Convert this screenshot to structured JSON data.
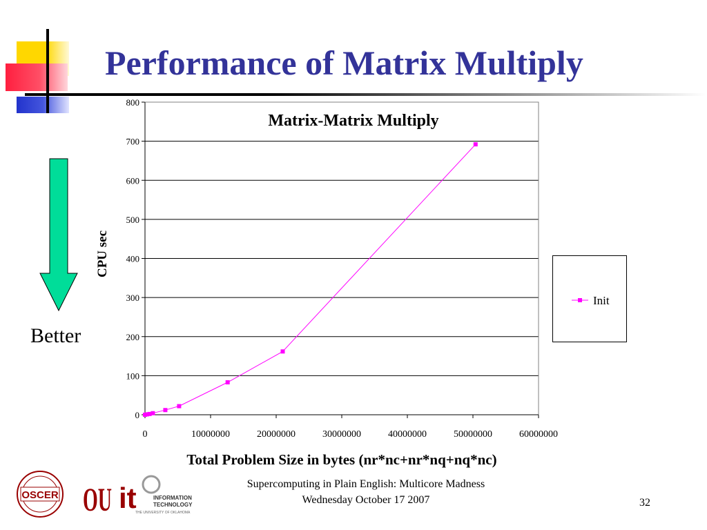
{
  "slide": {
    "title": "Performance of Matrix Multiply",
    "better_label": "Better",
    "footer_line1": "Supercomputing in Plain English: Multicore Madness",
    "footer_line2": "Wednesday October 17 2007",
    "slide_number": "32",
    "logos": {
      "oscer": "OSCER",
      "ou": "OU",
      "it_letters": "it",
      "it_info": "INFORMATION",
      "it_tech": "TECHNOLOGY",
      "it_univ": "THE UNIVERSITY OF OKLAHOMA"
    }
  },
  "colors": {
    "title": "#333399",
    "series": "#ff00ff",
    "arrow_fill": "#00dd99",
    "logo_red": "#990000"
  },
  "chart_data": {
    "type": "line",
    "title": "Matrix-Matrix Multiply",
    "xlabel": "Total Problem Size in bytes (nr*nc+nr*nq+nq*nc)",
    "ylabel": "CPU sec",
    "xlim": [
      0,
      60000000
    ],
    "ylim": [
      0,
      800
    ],
    "xticks": [
      "0",
      "10000000",
      "20000000",
      "30000000",
      "40000000",
      "50000000",
      "60000000"
    ],
    "yticks": [
      "0",
      "100",
      "200",
      "300",
      "400",
      "500",
      "600",
      "700",
      "800"
    ],
    "grid": "horizontal",
    "legend_position": "right",
    "series": [
      {
        "name": "Init",
        "x": [
          0,
          300000,
          700000,
          1200000,
          3100000,
          5200000,
          12600000,
          21000000,
          50400000
        ],
        "y": [
          0,
          1,
          2,
          4,
          12,
          22,
          83,
          162,
          692
        ]
      }
    ]
  }
}
